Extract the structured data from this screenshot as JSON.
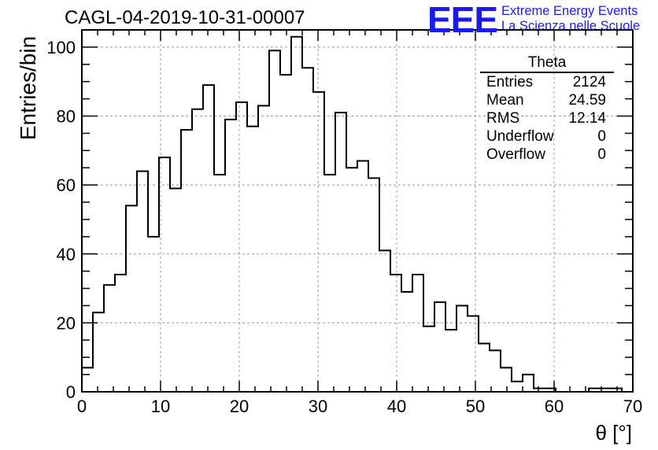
{
  "title": "CAGL-04-2019-10-31-00007",
  "logo": {
    "mark": "EEE",
    "line1": "Extreme Energy Events",
    "line2": "La Scienza nelle Scuole",
    "color": "#1a1aee"
  },
  "stats": {
    "title": "Theta",
    "rows": [
      {
        "label": "Entries",
        "value": "2124"
      },
      {
        "label": "Mean",
        "value": "24.59"
      },
      {
        "label": "RMS",
        "value": "12.14"
      },
      {
        "label": "Underflow",
        "value": "0"
      },
      {
        "label": "Overflow",
        "value": "0"
      }
    ]
  },
  "chart_data": {
    "type": "bar",
    "title": "CAGL-04-2019-10-31-00007",
    "xlabel": "θ [°]",
    "ylabel": "Entries/bin",
    "xlim": [
      0,
      70
    ],
    "ylim": [
      0,
      105
    ],
    "bin_width": 1.4,
    "x_ticks": [
      0,
      10,
      20,
      30,
      40,
      50,
      60,
      70
    ],
    "y_ticks": [
      0,
      20,
      40,
      60,
      80,
      100
    ],
    "grid": true,
    "values": [
      7,
      23,
      31,
      34,
      54,
      64,
      45,
      68,
      59,
      76,
      82,
      89,
      63,
      79,
      84,
      77,
      83,
      99,
      92,
      103,
      94,
      87,
      63,
      81,
      65,
      67,
      62,
      41,
      34,
      29,
      34,
      19,
      26,
      18,
      25,
      22,
      14,
      12,
      7,
      3,
      5,
      1,
      1,
      0,
      0,
      0,
      1,
      1,
      1,
      0
    ]
  }
}
